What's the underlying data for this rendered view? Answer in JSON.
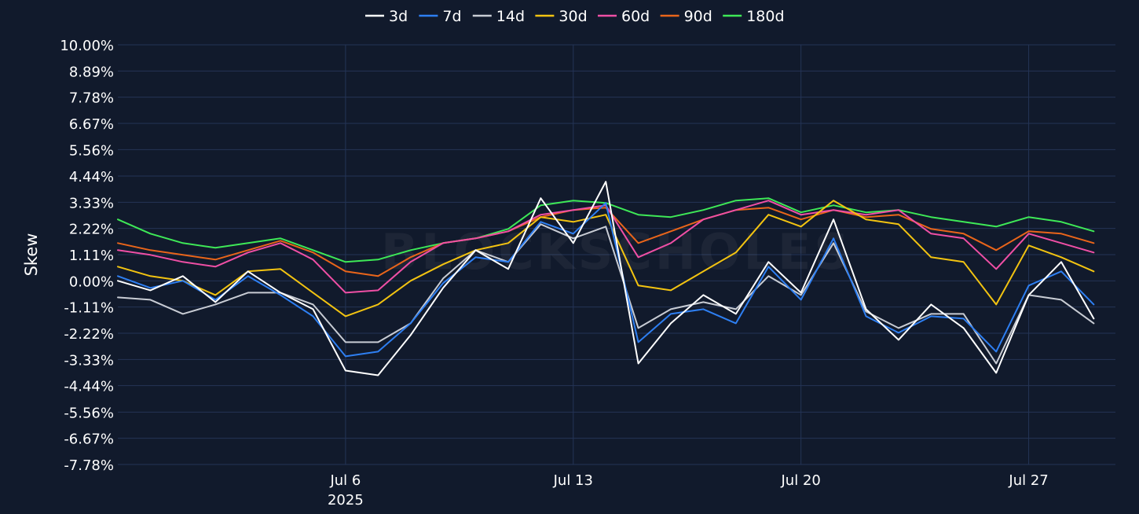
{
  "chart_data": {
    "type": "line",
    "title": "",
    "ylabel": "Skew",
    "xlabel": "",
    "ylim": [
      -7.78,
      10.0
    ],
    "y_unit": "%",
    "y_ticks": [
      10.0,
      8.89,
      7.78,
      6.67,
      5.56,
      4.44,
      3.33,
      2.22,
      1.11,
      0.0,
      -1.11,
      -2.22,
      -3.33,
      -4.44,
      -5.56,
      -6.67,
      -7.78
    ],
    "y_tick_labels": [
      "10.00%",
      "8.89%",
      "7.78%",
      "6.67%",
      "5.56%",
      "4.44%",
      "3.33%",
      "2.22%",
      "1.11%",
      "0.00%",
      "-1.11%",
      "-2.22%",
      "-3.33%",
      "-4.44%",
      "-5.56%",
      "-6.67%",
      "-7.78%"
    ],
    "xlim": [
      "2025-06-29",
      "2025-07-29 16:00"
    ],
    "x_ticks": [
      {
        "date": "2025-07-06",
        "label": "Jul 6",
        "sublabel": "2025"
      },
      {
        "date": "2025-07-13",
        "label": "Jul 13",
        "sublabel": ""
      },
      {
        "date": "2025-07-20",
        "label": "Jul 20",
        "sublabel": ""
      },
      {
        "date": "2025-07-27",
        "label": "Jul 27",
        "sublabel": ""
      }
    ],
    "grid": true,
    "legend_position": "top-center",
    "background": "#111a2c",
    "grid_color": "#243456",
    "x": [
      "2025-06-29",
      "2025-06-30",
      "2025-07-01",
      "2025-07-02",
      "2025-07-03",
      "2025-07-04",
      "2025-07-05",
      "2025-07-06",
      "2025-07-07",
      "2025-07-08",
      "2025-07-09",
      "2025-07-10",
      "2025-07-11",
      "2025-07-12",
      "2025-07-13",
      "2025-07-14",
      "2025-07-15",
      "2025-07-16",
      "2025-07-17",
      "2025-07-18",
      "2025-07-19",
      "2025-07-20",
      "2025-07-21",
      "2025-07-22",
      "2025-07-23",
      "2025-07-24",
      "2025-07-25",
      "2025-07-26",
      "2025-07-27",
      "2025-07-28",
      "2025-07-29"
    ],
    "series": [
      {
        "name": "3d",
        "color": "#ffffff",
        "values": [
          0.0,
          -0.4,
          0.2,
          -0.9,
          0.4,
          -0.5,
          -1.2,
          -3.8,
          -4.0,
          -2.3,
          -0.3,
          1.3,
          0.5,
          3.5,
          1.6,
          4.2,
          -3.5,
          -1.8,
          -0.6,
          -1.4,
          0.8,
          -0.5,
          2.6,
          -1.2,
          -2.5,
          -1.0,
          -2.0,
          -3.9,
          -0.6,
          0.8,
          -1.6
        ]
      },
      {
        "name": "7d",
        "color": "#2e7ff2",
        "values": [
          0.2,
          -0.3,
          0.0,
          -0.8,
          0.2,
          -0.6,
          -1.5,
          -3.2,
          -3.0,
          -1.8,
          -0.1,
          1.0,
          0.8,
          2.5,
          2.0,
          3.3,
          -2.6,
          -1.4,
          -1.2,
          -1.8,
          0.6,
          -0.8,
          1.8,
          -1.5,
          -2.2,
          -1.5,
          -1.6,
          -3.0,
          -0.2,
          0.4,
          -1.0
        ]
      },
      {
        "name": "14d",
        "color": "#c8ccd4",
        "values": [
          -0.7,
          -0.8,
          -1.4,
          -1.0,
          -0.5,
          -0.5,
          -1.0,
          -2.6,
          -2.6,
          -1.8,
          0.1,
          1.3,
          0.8,
          2.4,
          1.8,
          2.3,
          -2.0,
          -1.2,
          -0.9,
          -1.2,
          0.2,
          -0.6,
          1.6,
          -1.3,
          -2.0,
          -1.4,
          -1.4,
          -3.5,
          -0.6,
          -0.8,
          -1.8
        ]
      },
      {
        "name": "30d",
        "color": "#f2c311",
        "values": [
          0.6,
          0.2,
          0.0,
          -0.6,
          0.4,
          0.5,
          -0.5,
          -1.5,
          -1.0,
          0.0,
          0.7,
          1.3,
          1.6,
          2.7,
          2.5,
          2.8,
          -0.2,
          -0.4,
          0.4,
          1.2,
          2.8,
          2.3,
          3.4,
          2.6,
          2.4,
          1.0,
          0.8,
          -1.0,
          1.5,
          1.0,
          0.4
        ]
      },
      {
        "name": "60d",
        "color": "#ef4fa5",
        "values": [
          1.3,
          1.1,
          0.8,
          0.6,
          1.2,
          1.6,
          0.9,
          -0.5,
          -0.4,
          0.8,
          1.6,
          1.8,
          2.1,
          2.8,
          3.0,
          3.2,
          1.0,
          1.6,
          2.6,
          3.0,
          3.4,
          2.8,
          3.0,
          2.8,
          3.0,
          2.0,
          1.8,
          0.5,
          2.0,
          1.6,
          1.2
        ]
      },
      {
        "name": "90d",
        "color": "#e9651a",
        "values": [
          1.6,
          1.3,
          1.1,
          0.9,
          1.3,
          1.7,
          1.2,
          0.4,
          0.2,
          1.0,
          1.6,
          1.8,
          2.1,
          2.7,
          3.0,
          3.1,
          1.6,
          2.1,
          2.6,
          3.0,
          3.1,
          2.6,
          3.0,
          2.7,
          2.8,
          2.2,
          2.0,
          1.3,
          2.1,
          2.0,
          1.6
        ]
      },
      {
        "name": "180d",
        "color": "#3ee857",
        "values": [
          2.6,
          2.0,
          1.6,
          1.4,
          1.6,
          1.8,
          1.3,
          0.8,
          0.9,
          1.3,
          1.6,
          1.8,
          2.2,
          3.2,
          3.4,
          3.3,
          2.8,
          2.7,
          3.0,
          3.4,
          3.5,
          2.9,
          3.2,
          2.9,
          3.0,
          2.7,
          2.5,
          2.3,
          2.7,
          2.5,
          2.1
        ]
      }
    ],
    "watermark": "BLOCKSCHOLES"
  }
}
